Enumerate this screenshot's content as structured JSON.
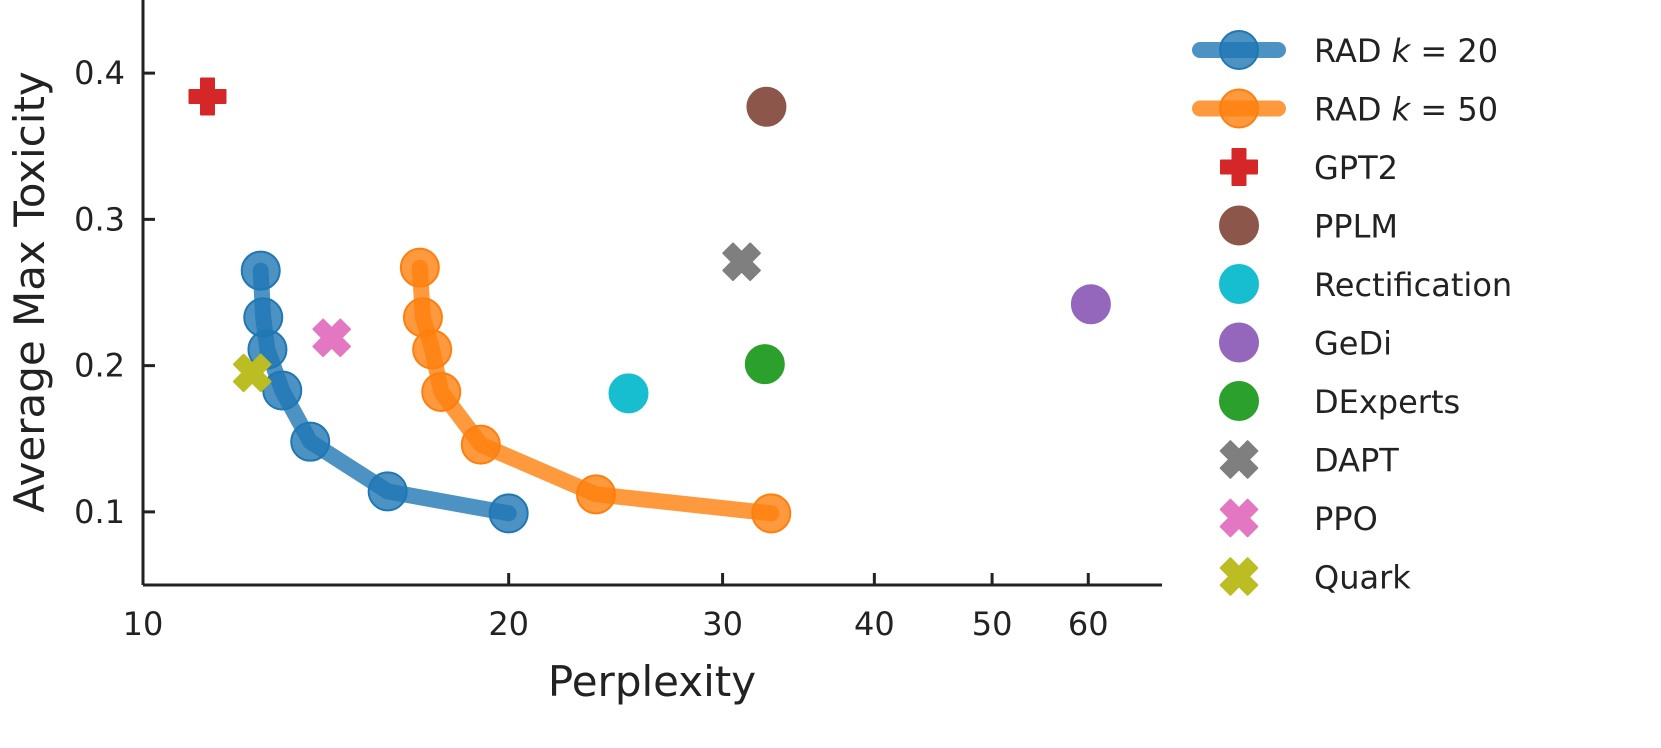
{
  "chart_data": {
    "type": "scatter",
    "title": "",
    "xlabel": "Perplexity",
    "ylabel": "Average Max Toxicity",
    "xscale": "log",
    "xlim": [
      10,
      69
    ],
    "ylim": [
      0.05,
      0.45
    ],
    "xticks": [
      10,
      20,
      30,
      40,
      50,
      60
    ],
    "xtick_labels": [
      "10",
      "20",
      "30",
      "40",
      "50",
      "60"
    ],
    "yticks": [
      0.1,
      0.2,
      0.3,
      0.4
    ],
    "ytick_labels": [
      "0.1",
      "0.2",
      "0.3",
      "0.4"
    ],
    "grid": false,
    "legend_placement": "right, outside",
    "series": [
      {
        "name": "RAD k = 20",
        "name_prefix": "RAD ",
        "name_var": "k",
        "name_suffix": " = 20",
        "kind": "line",
        "marker": "circle",
        "color": "#1f77b4",
        "x": [
          12.5,
          12.56,
          12.66,
          13.02,
          13.73,
          15.9,
          20.0
        ],
        "y": [
          0.265,
          0.233,
          0.211,
          0.183,
          0.148,
          0.114,
          0.099
        ]
      },
      {
        "name": "RAD k = 50",
        "name_prefix": "RAD ",
        "name_var": "k",
        "name_suffix": " = 50",
        "kind": "line",
        "marker": "circle",
        "color": "#ff7f0e",
        "x": [
          16.9,
          17.0,
          17.3,
          17.6,
          18.97,
          23.6,
          32.9
        ],
        "y": [
          0.267,
          0.233,
          0.211,
          0.182,
          0.146,
          0.112,
          0.099
        ]
      },
      {
        "name": "GPT2",
        "kind": "point",
        "marker": "plus",
        "color": "#d62728",
        "x": [
          11.3
        ],
        "y": [
          0.384
        ]
      },
      {
        "name": "PPLM",
        "kind": "point",
        "marker": "circle",
        "color": "#8c564b",
        "x": [
          32.6
        ],
        "y": [
          0.377
        ]
      },
      {
        "name": "Rectification",
        "kind": "point",
        "marker": "circle",
        "color": "#17becf",
        "x": [
          25.1
        ],
        "y": [
          0.181
        ]
      },
      {
        "name": "GeDi",
        "kind": "point",
        "marker": "circle",
        "color": "#9467bd",
        "x": [
          60.3
        ],
        "y": [
          0.242
        ]
      },
      {
        "name": "DExperts",
        "kind": "point",
        "marker": "circle",
        "color": "#2ca02c",
        "x": [
          32.5
        ],
        "y": [
          0.201
        ]
      },
      {
        "name": "DAPT",
        "kind": "point",
        "marker": "x",
        "color": "#7f7f7f",
        "x": [
          31.1
        ],
        "y": [
          0.271
        ]
      },
      {
        "name": "PPO",
        "kind": "point",
        "marker": "x",
        "color": "#e377c2",
        "x": [
          14.3
        ],
        "y": [
          0.219
        ]
      },
      {
        "name": "Quark",
        "kind": "point",
        "marker": "x",
        "color": "#bcbd22",
        "x": [
          12.3
        ],
        "y": [
          0.195
        ]
      }
    ]
  }
}
